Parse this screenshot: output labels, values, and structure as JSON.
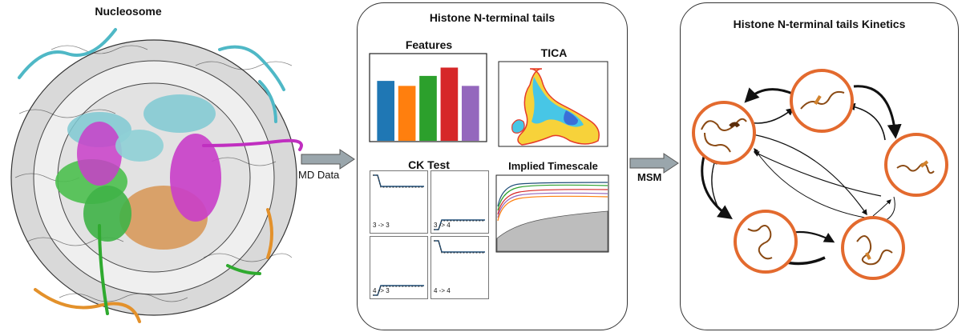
{
  "nucleosome": {
    "title": "Nucleosome"
  },
  "arrows": {
    "md_label": "MD Data",
    "msm_label": "MSM"
  },
  "panel_center": {
    "title": "Histone N-terminal tails",
    "features_title": "Features",
    "tica_title": "TICA",
    "ck_title": "CK Test",
    "its_title": "Implied Timescale",
    "ck_labels": [
      "3 -> 3",
      "3 -> 4",
      "4 -> 3",
      "4 -> 4"
    ]
  },
  "panel_right": {
    "title": "Histone N-terminal tails Kinetics"
  },
  "colors": {
    "bar_colors": [
      "#1f77b4",
      "#ff7f0e",
      "#2ca02c",
      "#d62728",
      "#9467bd"
    ],
    "state_ring": "#e36a2e",
    "arrow_fill": "#9aa6ac"
  },
  "chart_data": {
    "type": "bar",
    "values": [
      0.72,
      0.66,
      0.78,
      0.88,
      0.66
    ],
    "ylim": [
      0,
      1
    ]
  }
}
